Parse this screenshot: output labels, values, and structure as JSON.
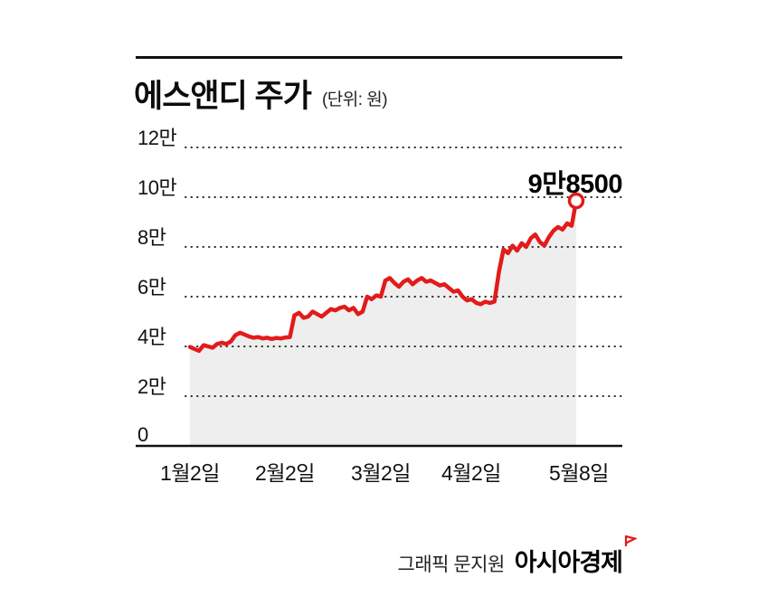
{
  "title": {
    "text": "에스앤디 주가",
    "unit": "(단위: 원)"
  },
  "chart_data": {
    "type": "line",
    "title": "에스앤디 주가",
    "unit_label": "(단위: 원)",
    "x_labels": [
      "1월2일",
      "2월2일",
      "3월2일",
      "4월2일",
      "5월8일"
    ],
    "y_tick_labels": [
      "12만",
      "10만",
      "8만",
      "6만",
      "4만",
      "2만",
      "0"
    ],
    "y_tick_values": [
      120000,
      100000,
      80000,
      60000,
      40000,
      20000,
      0
    ],
    "ylim": [
      0,
      120000
    ],
    "grid": "dotted-horizontal",
    "legend": false,
    "series": [
      {
        "name": "에스앤디 주가",
        "values": [
          39800,
          39000,
          38200,
          40500,
          40000,
          39500,
          41000,
          41500,
          41000,
          42000,
          44500,
          45500,
          44800,
          44000,
          43500,
          43800,
          43200,
          43500,
          43000,
          43400,
          43200,
          43600,
          43800,
          52500,
          53500,
          51500,
          52000,
          54000,
          53000,
          52000,
          53500,
          55000,
          54500,
          55500,
          56000,
          54500,
          55500,
          53000,
          54000,
          60000,
          59000,
          60500,
          60000,
          66500,
          67500,
          65500,
          64000,
          66000,
          67000,
          65000,
          66500,
          67500,
          66000,
          66500,
          65500,
          64500,
          65000,
          63500,
          62000,
          62500,
          60000,
          58500,
          59000,
          57500,
          57000,
          58000,
          57500,
          58000,
          70000,
          79000,
          77500,
          80500,
          78500,
          81500,
          80000,
          83500,
          85000,
          82000,
          80500,
          84000,
          86500,
          88000,
          87000,
          89500,
          88500,
          98500
        ]
      }
    ],
    "annotation": {
      "label": "9만8500",
      "value": 98500
    },
    "line_color": "#e21b1b",
    "fill_color": "#efeeee",
    "marker": "open-circle"
  },
  "footer": {
    "credit": "그래픽 문지원",
    "brand": "아시아경제",
    "brand_accent_color": "#e21b1b"
  }
}
